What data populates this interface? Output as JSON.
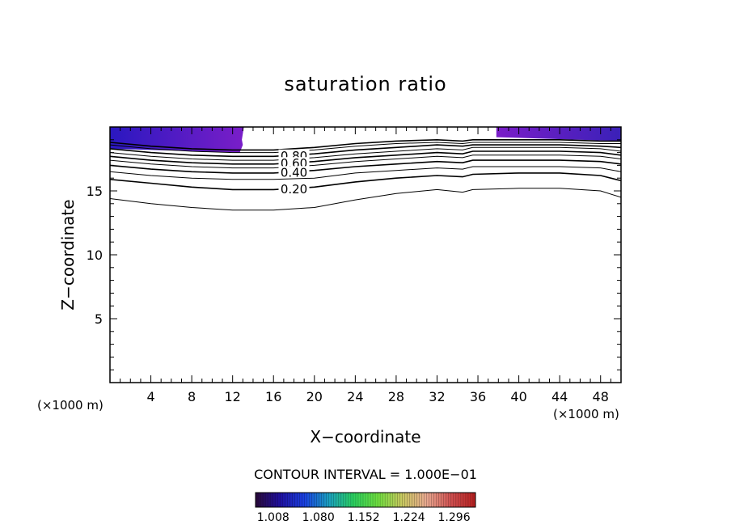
{
  "chart_data": {
    "type": "contour",
    "title": "saturation ratio",
    "xlabel": "X−coordinate",
    "ylabel": "Z−coordinate",
    "x_unit_label": "(×1000 m)",
    "z_unit_label": "(×1000 m)",
    "xlim": [
      0,
      50
    ],
    "ylim": [
      0,
      20
    ],
    "x_ticks": [
      4,
      8,
      12,
      16,
      20,
      24,
      28,
      32,
      36,
      40,
      44,
      48
    ],
    "y_ticks": [
      5,
      10,
      15
    ],
    "contour_interval_label": "CONTOUR INTERVAL = 1.000E−01",
    "contour_labels": [
      "0.80",
      "0.60",
      "0.40",
      "0.20"
    ],
    "contour_labels_x": 18,
    "contour_lines": [
      {
        "level": 0.1,
        "x": [
          0,
          4,
          8,
          12,
          16,
          20,
          24,
          28,
          32,
          34.5,
          35.5,
          40,
          44,
          48,
          50
        ],
        "z": [
          14.4,
          14.0,
          13.7,
          13.5,
          13.5,
          13.7,
          14.3,
          14.8,
          15.1,
          14.9,
          15.1,
          15.2,
          15.2,
          15.0,
          14.5
        ]
      },
      {
        "level": 0.2,
        "x": [
          0,
          4,
          8,
          12,
          16,
          20,
          24,
          28,
          32,
          34.5,
          35.5,
          40,
          44,
          48,
          50
        ],
        "z": [
          15.9,
          15.6,
          15.3,
          15.1,
          15.1,
          15.3,
          15.7,
          16.0,
          16.2,
          16.1,
          16.3,
          16.4,
          16.4,
          16.2,
          15.8
        ]
      },
      {
        "level": 0.3,
        "x": [
          0,
          4,
          8,
          12,
          16,
          20,
          24,
          28,
          32,
          34.5,
          35.5,
          40,
          44,
          48,
          50
        ],
        "z": [
          16.5,
          16.2,
          16.0,
          15.9,
          15.9,
          16.0,
          16.4,
          16.6,
          16.8,
          16.7,
          16.9,
          16.9,
          16.9,
          16.8,
          16.5
        ]
      },
      {
        "level": 0.4,
        "x": [
          0,
          4,
          8,
          12,
          16,
          20,
          24,
          28,
          32,
          34.5,
          35.5,
          40,
          44,
          48,
          50
        ],
        "z": [
          17.0,
          16.7,
          16.5,
          16.4,
          16.4,
          16.6,
          16.9,
          17.1,
          17.3,
          17.2,
          17.4,
          17.4,
          17.4,
          17.3,
          17.1
        ]
      },
      {
        "level": 0.5,
        "x": [
          0,
          4,
          8,
          12,
          16,
          20,
          24,
          28,
          32,
          34.5,
          35.5,
          40,
          44,
          48,
          50
        ],
        "z": [
          17.4,
          17.1,
          16.9,
          16.8,
          16.8,
          17.0,
          17.3,
          17.5,
          17.7,
          17.6,
          17.8,
          17.8,
          17.8,
          17.7,
          17.5
        ]
      },
      {
        "level": 0.6,
        "x": [
          0,
          4,
          8,
          12,
          16,
          20,
          24,
          28,
          32,
          34.5,
          35.5,
          40,
          44,
          48,
          50
        ],
        "z": [
          17.7,
          17.4,
          17.2,
          17.1,
          17.1,
          17.3,
          17.6,
          17.8,
          18.0,
          17.9,
          18.1,
          18.1,
          18.1,
          18.0,
          17.8
        ]
      },
      {
        "level": 0.7,
        "x": [
          0,
          4,
          8,
          12,
          16,
          20,
          24,
          28,
          32,
          34.5,
          35.5,
          40,
          44,
          48,
          50
        ],
        "z": [
          18.0,
          17.7,
          17.5,
          17.4,
          17.4,
          17.6,
          17.9,
          18.1,
          18.3,
          18.2,
          18.4,
          18.4,
          18.4,
          18.3,
          18.1
        ]
      },
      {
        "level": 0.8,
        "x": [
          0,
          4,
          8,
          12,
          16,
          20,
          24,
          28,
          32,
          34.5,
          35.5,
          40,
          44,
          48,
          50
        ],
        "z": [
          18.3,
          18.0,
          17.8,
          17.7,
          17.7,
          17.9,
          18.2,
          18.4,
          18.6,
          18.5,
          18.6,
          18.6,
          18.6,
          18.5,
          18.4
        ]
      },
      {
        "level": 0.9,
        "x": [
          0,
          4,
          8,
          12,
          16,
          20,
          24,
          28,
          32,
          34.5,
          35.5,
          40,
          44,
          48,
          50
        ],
        "z": [
          18.6,
          18.3,
          18.1,
          18.0,
          18.0,
          18.2,
          18.5,
          18.7,
          18.8,
          18.7,
          18.8,
          18.8,
          18.8,
          18.7,
          18.7
        ]
      },
      {
        "level": 1.0,
        "x": [
          0,
          4,
          8,
          12,
          16,
          20,
          24,
          28,
          32,
          34.5,
          35.5,
          40,
          44,
          48,
          50
        ],
        "z": [
          18.8,
          18.5,
          18.3,
          18.2,
          18.2,
          18.4,
          18.7,
          18.9,
          19.0,
          18.9,
          19.0,
          19.0,
          19.0,
          18.9,
          18.9
        ]
      }
    ],
    "shaded_regions": [
      {
        "x": [
          0,
          13.1,
          12.9,
          13.0,
          12.7,
          0
        ],
        "z": [
          20,
          20,
          19.0,
          18.6,
          18.0,
          18.3
        ],
        "color_at_top": "#5a1ab8",
        "color_at_edge": "#7a1ec8"
      },
      {
        "x": [
          37.8,
          50,
          50,
          37.8
        ],
        "z": [
          20,
          20,
          18.9,
          19.2
        ],
        "color_at_top": "#7a1ec8",
        "color_at_edge": "#3a20b8"
      }
    ],
    "colorbar": {
      "ticks": [
        "1.008",
        "1.080",
        "1.152",
        "1.224",
        "1.296"
      ],
      "range": [
        0.98,
        1.33
      ],
      "colors": [
        "#2a0a3a",
        "#2010a0",
        "#1a40e0",
        "#1aa0c0",
        "#2ad060",
        "#70e040",
        "#c8c860",
        "#e8a890",
        "#d05050",
        "#b82020"
      ]
    }
  }
}
